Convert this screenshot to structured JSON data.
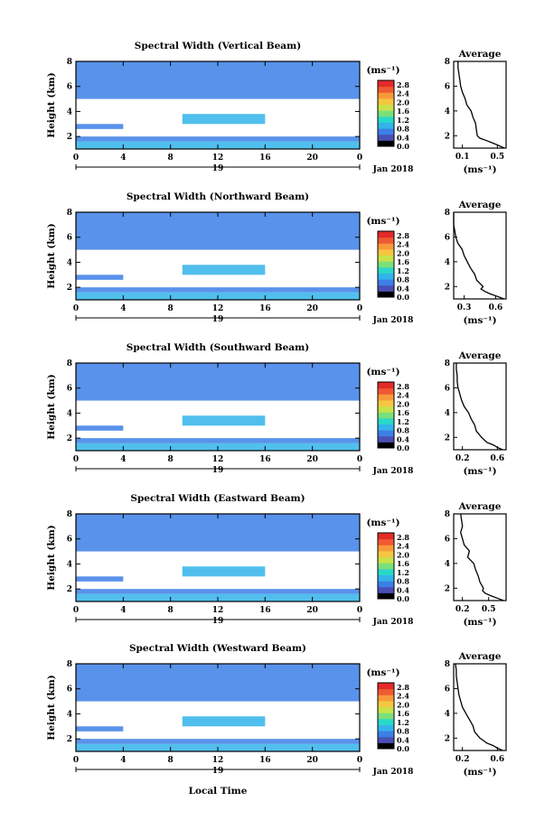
{
  "figure": {
    "x_label": "Local Time",
    "date_label": "Jan 2018",
    "day_label": "19",
    "colorbar_unit": "(ms⁻¹)",
    "avg_title": "Average",
    "avg_xlabel": "(ms⁻¹)"
  },
  "colorbar": {
    "ticks": [
      "0.0",
      "0.4",
      "0.8",
      "1.2",
      "1.6",
      "2.0",
      "2.4",
      "2.8"
    ],
    "range": [
      0,
      3.0
    ],
    "colors": [
      "#000000",
      "#4a4fb6",
      "#3c7fe6",
      "#33b4ea",
      "#2ad8c8",
      "#7ae07a",
      "#c8e24a",
      "#f6c640",
      "#f79a3a",
      "#f05a32",
      "#e42a2a"
    ]
  },
  "chart_data": [
    {
      "type": "heatmap",
      "title": "Spectral Width (Vertical Beam)",
      "ylabel": "Height (km)",
      "xlim": [
        0,
        24
      ],
      "ylim": [
        1,
        8
      ],
      "x_ticks": [
        "0",
        "4",
        "8",
        "12",
        "16",
        "20",
        "0"
      ],
      "y_ticks": [
        "2",
        "4",
        "6",
        "8"
      ],
      "regions": [
        {
          "x": [
            0,
            24
          ],
          "y": [
            1.0,
            1.6
          ],
          "v": 0.7
        },
        {
          "x": [
            0,
            24
          ],
          "y": [
            1.6,
            2.0
          ],
          "v": 0.45
        },
        {
          "x": [
            0,
            4
          ],
          "y": [
            2.6,
            3.0
          ],
          "v": 0.5
        },
        {
          "x": [
            9,
            16
          ],
          "y": [
            3.0,
            3.8
          ],
          "v": 0.6
        },
        {
          "x": [
            0,
            24
          ],
          "y": [
            5.0,
            8.0
          ],
          "v": 0.3
        }
      ],
      "average": {
        "xlim": [
          0,
          0.6
        ],
        "x_ticks": [
          "0.1",
          "0.5"
        ],
        "y_ticks": [
          "2",
          "4",
          "6",
          "8"
        ],
        "height": [
          1.0,
          1.2,
          1.4,
          1.6,
          1.8,
          2.0,
          2.5,
          3.0,
          3.5,
          4.0,
          4.5,
          5.0,
          5.5,
          6.0,
          6.5,
          7.0,
          7.5,
          8.0
        ],
        "value": [
          0.58,
          0.52,
          0.45,
          0.38,
          0.3,
          0.27,
          0.26,
          0.25,
          0.22,
          0.2,
          0.15,
          0.13,
          0.1,
          0.08,
          0.07,
          0.06,
          0.05,
          0.05
        ]
      }
    },
    {
      "type": "heatmap",
      "title": "Spectral Width (Northward Beam)",
      "ylabel": "Height (km)",
      "xlim": [
        0,
        24
      ],
      "ylim": [
        1,
        8
      ],
      "x_ticks": [
        "0",
        "4",
        "8",
        "12",
        "16",
        "20",
        "0"
      ],
      "y_ticks": [
        "2",
        "4",
        "6",
        "8"
      ],
      "regions": [
        {
          "x": [
            0,
            24
          ],
          "y": [
            1.0,
            1.6
          ],
          "v": 0.7
        },
        {
          "x": [
            0,
            24
          ],
          "y": [
            1.6,
            2.0
          ],
          "v": 0.45
        },
        {
          "x": [
            0,
            4
          ],
          "y": [
            2.6,
            3.0
          ],
          "v": 0.5
        },
        {
          "x": [
            9,
            16
          ],
          "y": [
            3.0,
            3.8
          ],
          "v": 0.6
        },
        {
          "x": [
            0,
            24
          ],
          "y": [
            5.0,
            8.0
          ],
          "v": 0.3
        }
      ],
      "average": {
        "xlim": [
          0.2,
          0.7
        ],
        "x_ticks": [
          "0.3",
          "0.6"
        ],
        "y_ticks": [
          "2",
          "4",
          "6",
          "8"
        ],
        "height": [
          1.0,
          1.2,
          1.4,
          1.6,
          1.8,
          2.0,
          2.5,
          3.0,
          3.5,
          4.0,
          4.5,
          5.0,
          5.5,
          6.0,
          6.5,
          7.0,
          7.5,
          8.0
        ],
        "value": [
          0.68,
          0.62,
          0.55,
          0.5,
          0.46,
          0.48,
          0.42,
          0.4,
          0.36,
          0.33,
          0.3,
          0.28,
          0.24,
          0.22,
          0.21,
          0.2,
          0.2,
          0.2
        ]
      }
    },
    {
      "type": "heatmap",
      "title": "Spectral Width (Southward Beam)",
      "ylabel": "Height (km)",
      "xlim": [
        0,
        24
      ],
      "ylim": [
        1,
        8
      ],
      "x_ticks": [
        "0",
        "4",
        "8",
        "12",
        "16",
        "20",
        "0"
      ],
      "y_ticks": [
        "2",
        "4",
        "6",
        "8"
      ],
      "regions": [
        {
          "x": [
            0,
            24
          ],
          "y": [
            1.0,
            1.6
          ],
          "v": 0.7
        },
        {
          "x": [
            0,
            24
          ],
          "y": [
            1.6,
            2.0
          ],
          "v": 0.45
        },
        {
          "x": [
            0,
            4
          ],
          "y": [
            2.6,
            3.0
          ],
          "v": 0.5
        },
        {
          "x": [
            9,
            16
          ],
          "y": [
            3.0,
            3.8
          ],
          "v": 0.6
        },
        {
          "x": [
            0,
            24
          ],
          "y": [
            5.0,
            8.0
          ],
          "v": 0.3
        }
      ],
      "average": {
        "xlim": [
          0.1,
          0.7
        ],
        "x_ticks": [
          "0.2",
          "0.6"
        ],
        "y_ticks": [
          "2",
          "4",
          "6",
          "8"
        ],
        "height": [
          1.0,
          1.2,
          1.4,
          1.6,
          1.8,
          2.0,
          2.5,
          3.0,
          3.5,
          4.0,
          4.5,
          5.0,
          5.5,
          6.0,
          6.5,
          7.0,
          7.5,
          8.0
        ],
        "value": [
          0.66,
          0.6,
          0.55,
          0.48,
          0.45,
          0.42,
          0.36,
          0.34,
          0.3,
          0.27,
          0.22,
          0.19,
          0.17,
          0.15,
          0.14,
          0.14,
          0.13,
          0.13
        ]
      }
    },
    {
      "type": "heatmap",
      "title": "Spectral Width (Eastward Beam)",
      "ylabel": "Height (km)",
      "xlim": [
        0,
        24
      ],
      "ylim": [
        1,
        8
      ],
      "x_ticks": [
        "0",
        "4",
        "8",
        "12",
        "16",
        "20",
        "0"
      ],
      "y_ticks": [
        "2",
        "4",
        "6",
        "8"
      ],
      "regions": [
        {
          "x": [
            0,
            24
          ],
          "y": [
            1.0,
            1.6
          ],
          "v": 0.7
        },
        {
          "x": [
            0,
            24
          ],
          "y": [
            1.6,
            2.0
          ],
          "v": 0.45
        },
        {
          "x": [
            0,
            4
          ],
          "y": [
            2.6,
            3.0
          ],
          "v": 0.5
        },
        {
          "x": [
            9,
            16
          ],
          "y": [
            3.0,
            3.8
          ],
          "v": 0.6
        },
        {
          "x": [
            0,
            24
          ],
          "y": [
            5.0,
            8.0
          ],
          "v": 0.3
        }
      ],
      "average": {
        "xlim": [
          0.1,
          0.7
        ],
        "x_ticks": [
          "0.2",
          "0.5"
        ],
        "y_ticks": [
          "2",
          "4",
          "6",
          "8"
        ],
        "height": [
          1.0,
          1.2,
          1.4,
          1.6,
          1.8,
          2.0,
          2.5,
          3.0,
          3.5,
          4.0,
          4.5,
          5.0,
          5.5,
          6.0,
          6.5,
          7.0,
          7.5,
          8.0
        ],
        "value": [
          0.67,
          0.6,
          0.52,
          0.46,
          0.43,
          0.44,
          0.4,
          0.38,
          0.35,
          0.33,
          0.26,
          0.28,
          0.22,
          0.2,
          0.18,
          0.2,
          0.19,
          0.18
        ]
      }
    },
    {
      "type": "heatmap",
      "title": "Spectral Width (Westward Beam)",
      "ylabel": "Height (km)",
      "xlim": [
        0,
        24
      ],
      "ylim": [
        1,
        8
      ],
      "x_ticks": [
        "0",
        "4",
        "8",
        "12",
        "16",
        "20",
        "0"
      ],
      "y_ticks": [
        "2",
        "4",
        "6",
        "8"
      ],
      "regions": [
        {
          "x": [
            0,
            24
          ],
          "y": [
            1.0,
            1.6
          ],
          "v": 0.7
        },
        {
          "x": [
            0,
            24
          ],
          "y": [
            1.6,
            2.0
          ],
          "v": 0.45
        },
        {
          "x": [
            0,
            4
          ],
          "y": [
            2.6,
            3.0
          ],
          "v": 0.5
        },
        {
          "x": [
            9,
            16
          ],
          "y": [
            3.0,
            3.8
          ],
          "v": 0.6
        },
        {
          "x": [
            0,
            24
          ],
          "y": [
            5.0,
            8.0
          ],
          "v": 0.3
        }
      ],
      "average": {
        "xlim": [
          0.1,
          0.7
        ],
        "x_ticks": [
          "0.2",
          "0.6"
        ],
        "y_ticks": [
          "2",
          "4",
          "6",
          "8"
        ],
        "height": [
          1.0,
          1.2,
          1.4,
          1.6,
          1.8,
          2.0,
          2.5,
          3.0,
          3.5,
          4.0,
          4.5,
          5.0,
          5.5,
          6.0,
          6.5,
          7.0,
          7.5,
          8.0
        ],
        "value": [
          0.66,
          0.6,
          0.55,
          0.48,
          0.44,
          0.4,
          0.34,
          0.32,
          0.28,
          0.24,
          0.2,
          0.18,
          0.16,
          0.15,
          0.14,
          0.13,
          0.13,
          0.12
        ]
      }
    }
  ]
}
